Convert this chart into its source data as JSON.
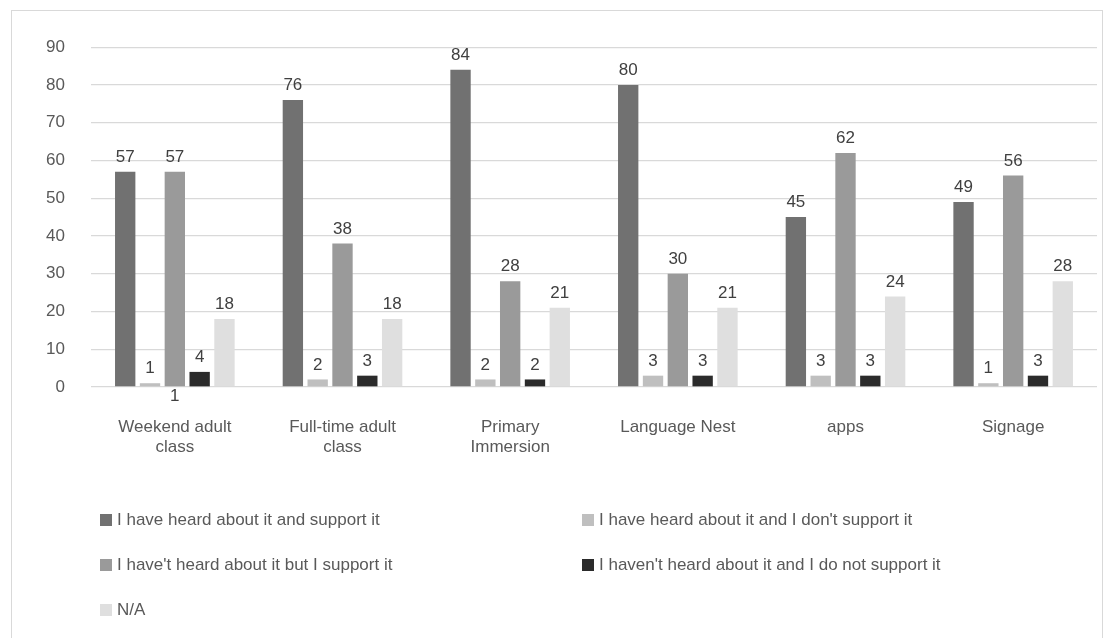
{
  "chart_data": {
    "type": "bar",
    "categories": [
      "Weekend adult class",
      "Full-time adult class",
      "Primary Immersion",
      "Language Nest",
      "apps",
      "Signage"
    ],
    "series": [
      {
        "name": "I have heard about it and support it",
        "color": "#717171",
        "values": [
          57,
          76,
          84,
          80,
          45,
          49
        ]
      },
      {
        "name": "I have heard about it and I don't support it",
        "color": "#bfbfbf",
        "values": [
          1,
          2,
          2,
          3,
          3,
          1
        ]
      },
      {
        "name": "I have't heard about it but I support it",
        "color": "#9a9a9a",
        "values": [
          57,
          38,
          28,
          30,
          62,
          56
        ]
      },
      {
        "name": "I haven't heard about it and I do not support it",
        "color": "#2b2b2b",
        "values": [
          4,
          3,
          2,
          3,
          3,
          3
        ]
      },
      {
        "name": "N/A",
        "color": "#dfdfdf",
        "values": [
          18,
          18,
          21,
          21,
          24,
          28
        ]
      }
    ],
    "ylim": [
      0,
      90
    ],
    "yticks": [
      0,
      10,
      20,
      30,
      40,
      50,
      60,
      70,
      80,
      90
    ],
    "grid": "y",
    "legend": "bottom",
    "data_labels": true,
    "annotations": [
      {
        "text": "1",
        "x": "Weekend adult class",
        "y": 0
      }
    ]
  }
}
